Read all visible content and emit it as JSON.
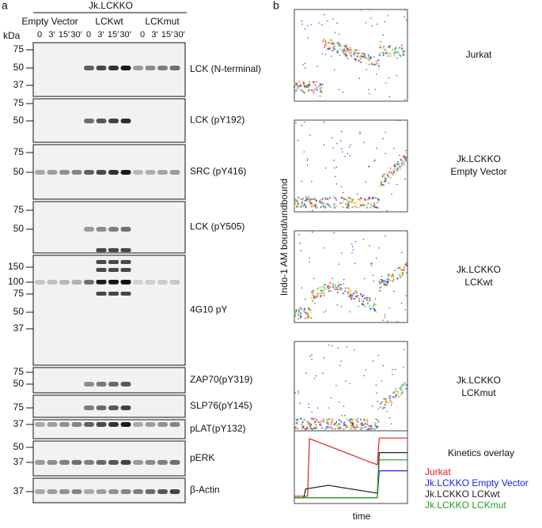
{
  "panel_a": {
    "label": "a",
    "cell_line": "Jk.LCKKO",
    "groups": [
      "Empty Vector",
      "LCKwt",
      "LCKmut"
    ],
    "unit": "kDa",
    "timepoints": [
      "0",
      "3′",
      "15′",
      "30′"
    ],
    "blots": [
      {
        "name": "LCK (N-terminal)",
        "markers": [
          "75",
          "50",
          "37"
        ]
      },
      {
        "name": "LCK (pY192)",
        "markers": [
          "75",
          "50"
        ]
      },
      {
        "name": "SRC (pY416)",
        "markers": [
          "75",
          "50"
        ]
      },
      {
        "name": "LCK (pY505)",
        "markers": [
          "75",
          "50"
        ]
      },
      {
        "name": "4G10 pY",
        "markers": [
          "150",
          "100",
          "75",
          "50",
          "37"
        ]
      },
      {
        "name": "ZAP70(pY319)",
        "markers": [
          "75",
          "50"
        ]
      },
      {
        "name": "SLP76(pY145)",
        "markers": [
          "75"
        ]
      },
      {
        "name": "pLAT(pY132)",
        "markers": [
          "37"
        ]
      },
      {
        "name": "pERK",
        "markers": [
          "50",
          "37"
        ]
      },
      {
        "name": "β-Actin",
        "markers": [
          "37"
        ]
      }
    ]
  },
  "panel_b": {
    "label": "b",
    "y_axis_label": "Indo-1 AM bound/undbound",
    "x_axis_label": "time",
    "plots": [
      {
        "title": "Jurkat"
      },
      {
        "title": "Jk.LCKKO\nEmpty Vector"
      },
      {
        "title": "Jk.LCKKO\nLCKwt"
      },
      {
        "title": "Jk.LCKKO\nLCKmut"
      }
    ],
    "overlay": {
      "title": "Kinetics overlay",
      "legend": [
        {
          "name": "Jurkat",
          "color": "#e02020"
        },
        {
          "name": "Jk.LCKKO Empty Vector",
          "color": "#2020e0"
        },
        {
          "name": "Jk.LCKKO LCKwt",
          "color": "#202020"
        },
        {
          "name": "Jk.LCKKO LCKmut",
          "color": "#20a020"
        }
      ]
    }
  }
}
